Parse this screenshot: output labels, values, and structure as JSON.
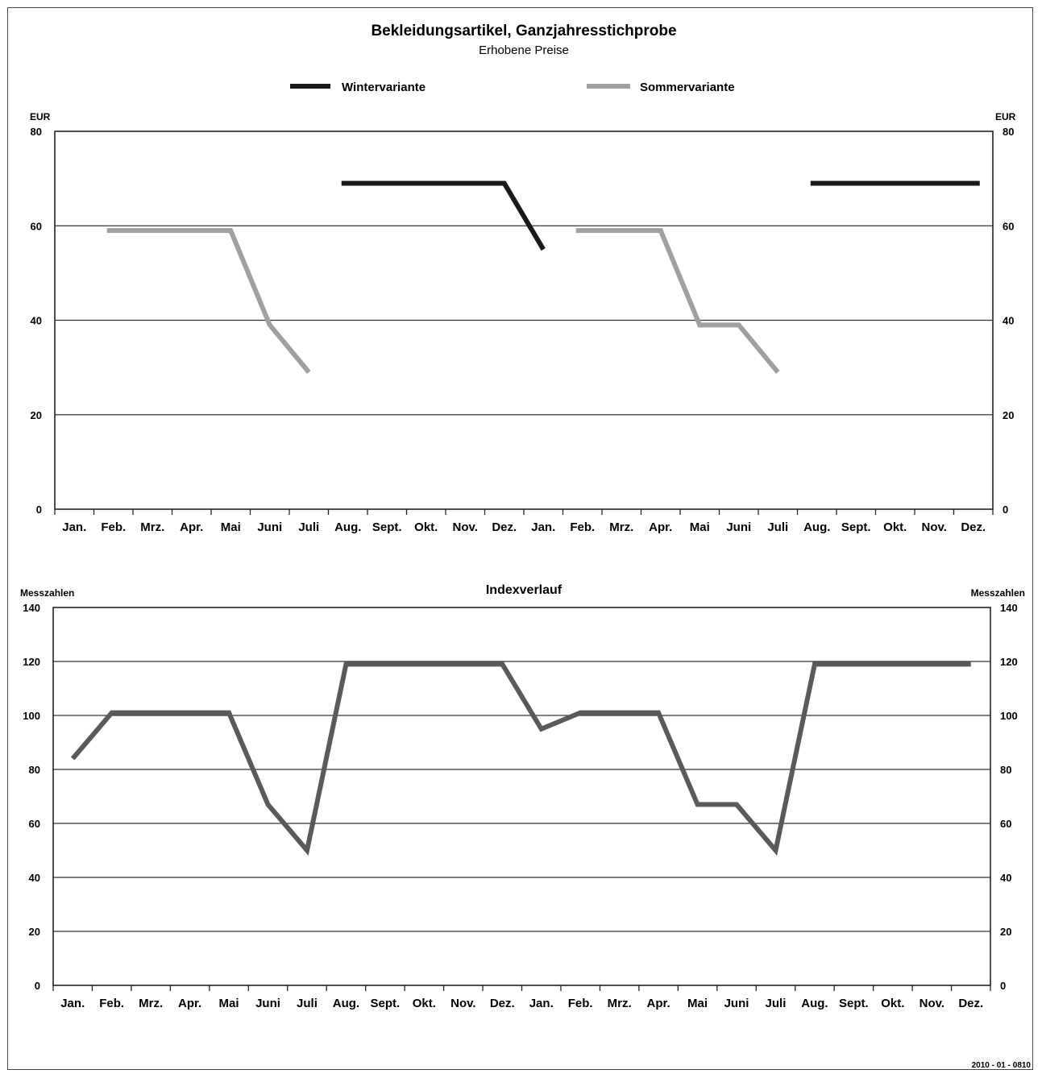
{
  "source_code": "2010 - 01 - 0810",
  "chart_data": [
    {
      "type": "line",
      "title": "Bekleidungsartikel, Ganzjahresstichprobe",
      "subtitle": "Erhobene Preise",
      "ylabel_left": "EUR",
      "ylabel_right": "EUR",
      "ylim": [
        0,
        80
      ],
      "yticks": [
        0,
        20,
        40,
        60,
        80
      ],
      "grid": true,
      "legend_position": "top",
      "categories": [
        "Jan.",
        "Feb.",
        "Mrz.",
        "Apr.",
        "Mai",
        "Juni",
        "Juli",
        "Aug.",
        "Sept.",
        "Okt.",
        "Nov.",
        "Dez.",
        "Jan.",
        "Feb.",
        "Mrz.",
        "Apr.",
        "Mai",
        "Juni",
        "Juli",
        "Aug.",
        "Sept.",
        "Okt.",
        "Nov.",
        "Dez."
      ],
      "series": [
        {
          "name": "Wintervariante",
          "color": "#1a1a1a",
          "values": [
            null,
            null,
            null,
            null,
            null,
            null,
            null,
            69,
            69,
            69,
            69,
            69,
            55,
            null,
            null,
            null,
            null,
            null,
            null,
            69,
            69,
            69,
            69,
            69
          ]
        },
        {
          "name": "Sommervariante",
          "color": "#a0a0a0",
          "values": [
            null,
            59,
            59,
            59,
            59,
            39,
            29,
            null,
            null,
            null,
            null,
            null,
            null,
            59,
            59,
            59,
            39,
            39,
            29,
            null,
            null,
            null,
            null,
            null
          ]
        }
      ]
    },
    {
      "type": "line",
      "title": "Indexverlauf",
      "ylabel_left": "Messzahlen",
      "ylabel_right": "Messzahlen",
      "ylim": [
        0,
        140
      ],
      "yticks": [
        0,
        20,
        40,
        60,
        80,
        100,
        120,
        140
      ],
      "grid": true,
      "categories": [
        "Jan.",
        "Feb.",
        "Mrz.",
        "Apr.",
        "Mai",
        "Juni",
        "Juli",
        "Aug.",
        "Sept.",
        "Okt.",
        "Nov.",
        "Dez.",
        "Jan.",
        "Feb.",
        "Mrz.",
        "Apr.",
        "Mai",
        "Juni",
        "Juli",
        "Aug.",
        "Sept.",
        "Okt.",
        "Nov.",
        "Dez."
      ],
      "series": [
        {
          "color": "#5a5a5a",
          "values": [
            84,
            101,
            101,
            101,
            101,
            67,
            50,
            119,
            119,
            119,
            119,
            119,
            95,
            101,
            101,
            101,
            67,
            67,
            50,
            119,
            119,
            119,
            119,
            119
          ]
        }
      ]
    }
  ]
}
